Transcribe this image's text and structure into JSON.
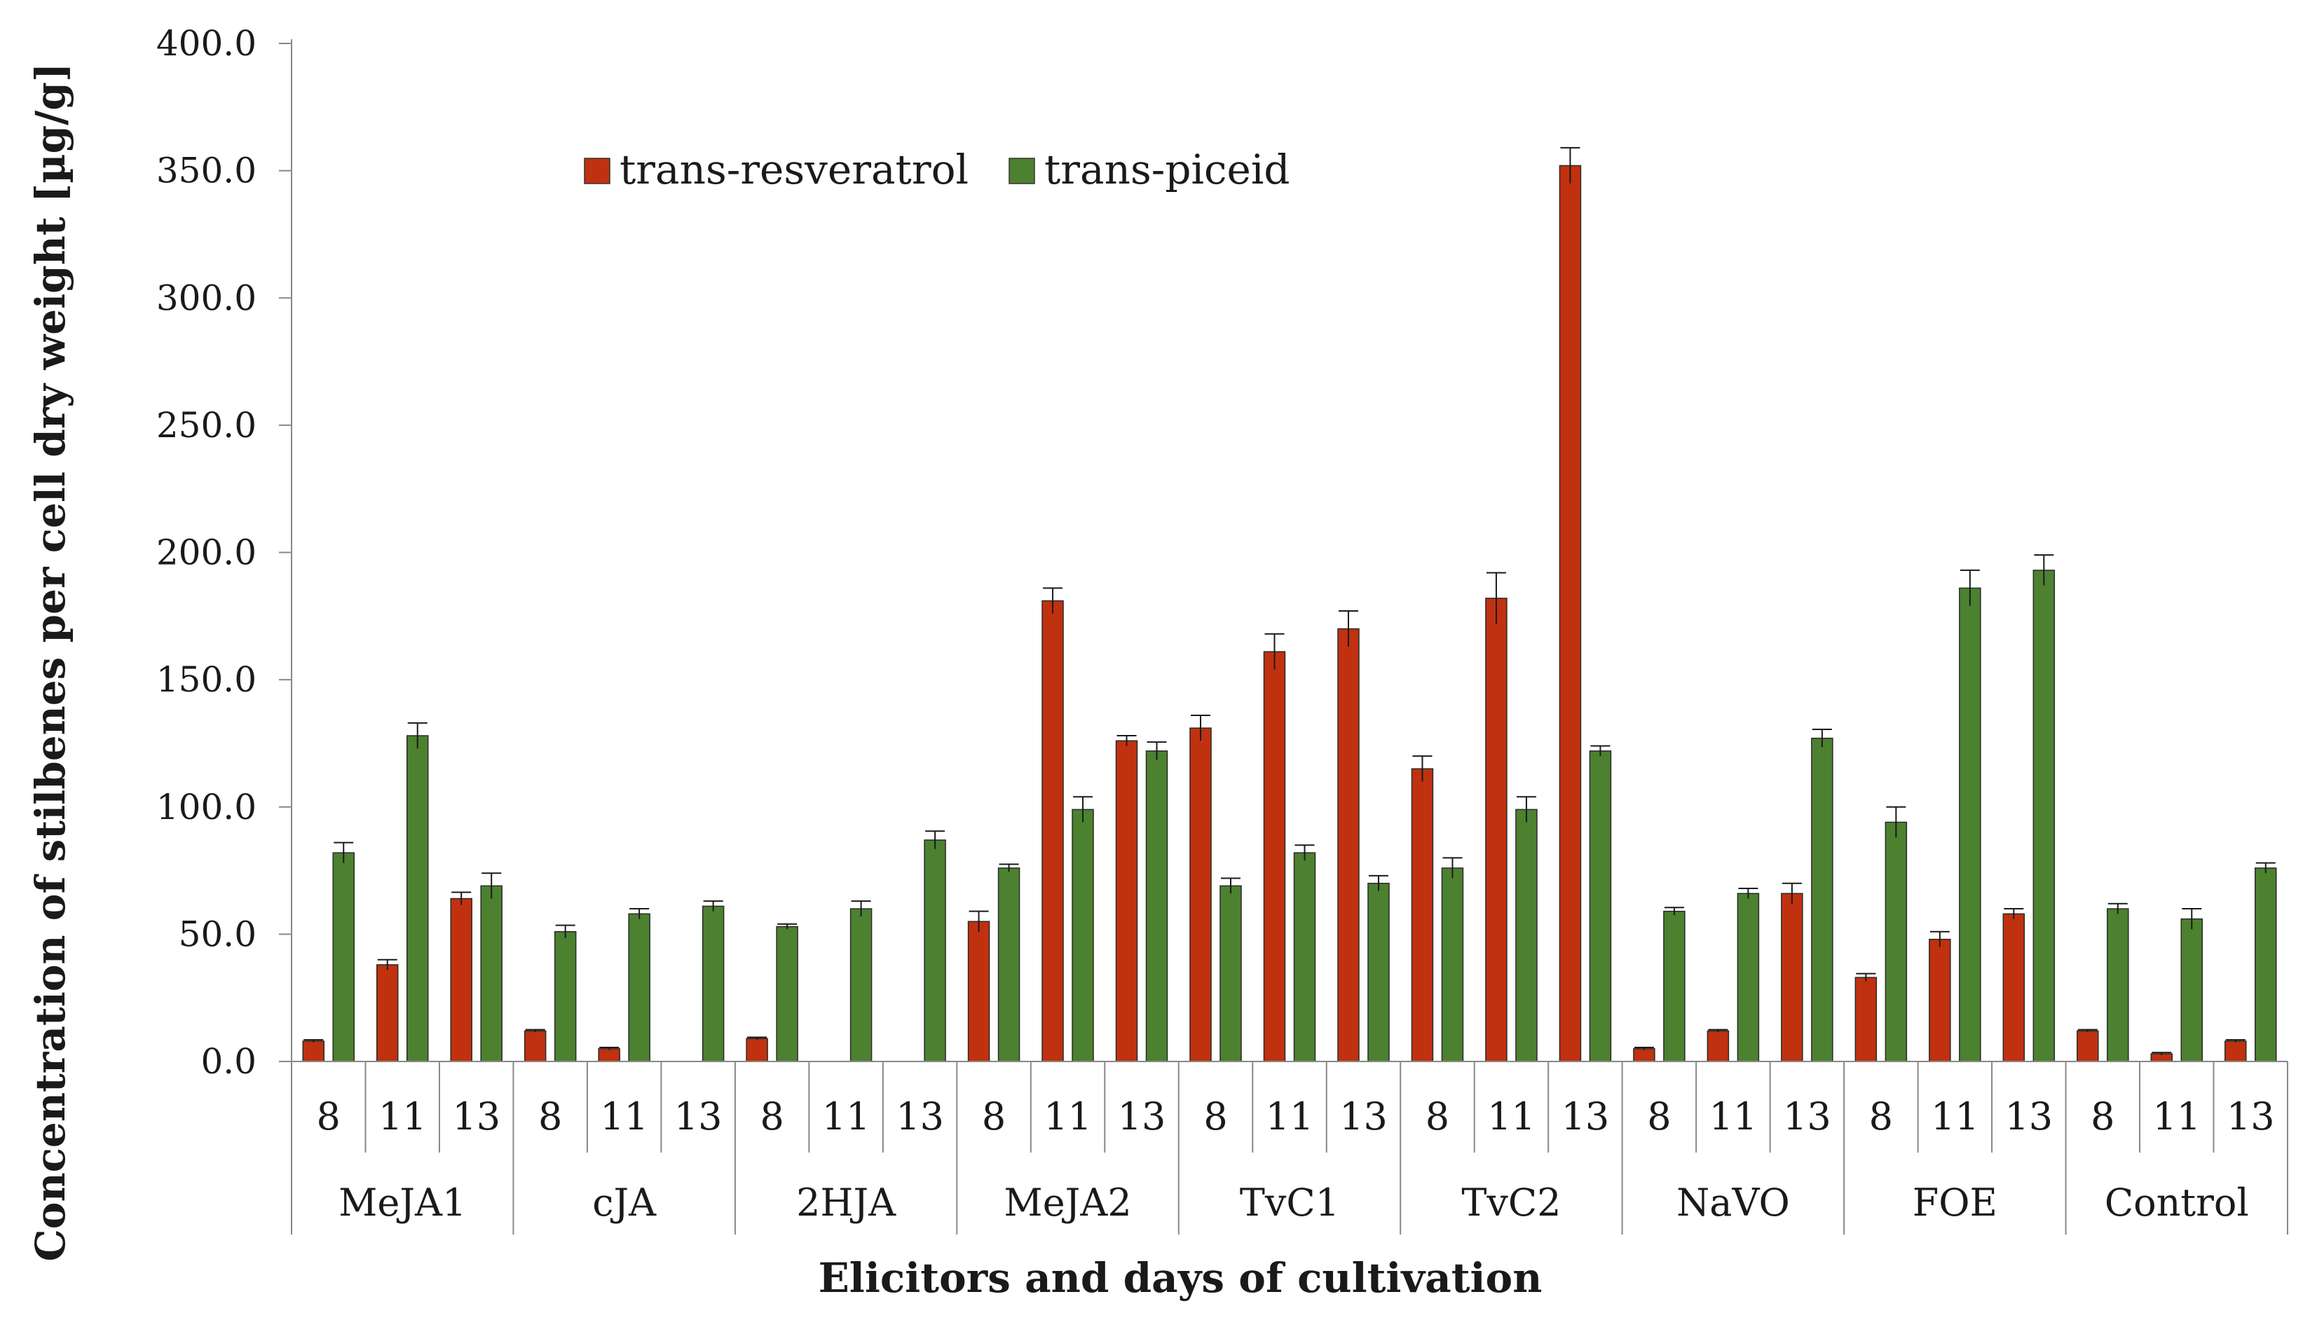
{
  "chart_data": {
    "type": "bar",
    "title": "",
    "xlabel": "Elicitors and days of cultivation",
    "ylabel": "Concentration of stilbenes per cell dry weight [µg/g]",
    "ylim": [
      0,
      400
    ],
    "yticks": [
      "0.0",
      "50.0",
      "100.0",
      "150.0",
      "200.0",
      "250.0",
      "300.0",
      "350.0",
      "400.0"
    ],
    "grid": false,
    "legend_position": "top-left",
    "groups": [
      {
        "name": "MeJA1",
        "days": [
          "8",
          "11",
          "13"
        ]
      },
      {
        "name": "cJA",
        "days": [
          "8",
          "11",
          "13"
        ]
      },
      {
        "name": "2HJA",
        "days": [
          "8",
          "11",
          "13"
        ]
      },
      {
        "name": "MeJA2",
        "days": [
          "8",
          "11",
          "13"
        ]
      },
      {
        "name": "TvC1",
        "days": [
          "8",
          "11",
          "13"
        ]
      },
      {
        "name": "TvC2",
        "days": [
          "8",
          "11",
          "13"
        ]
      },
      {
        "name": "NaVO",
        "days": [
          "8",
          "11",
          "13"
        ]
      },
      {
        "name": "FOE",
        "days": [
          "8",
          "11",
          "13"
        ]
      },
      {
        "name": "Control",
        "days": [
          "8",
          "11",
          "13"
        ]
      }
    ],
    "series": [
      {
        "name": "trans-resveratrol",
        "color": "#c0310f",
        "values": [
          8,
          38,
          64,
          12,
          5,
          0,
          9,
          0,
          0,
          55,
          181,
          126,
          131,
          161,
          170,
          115,
          182,
          352,
          5,
          12,
          66,
          33,
          48,
          58,
          12,
          3,
          8
        ],
        "errors": [
          0.5,
          2,
          2.5,
          0.5,
          0.5,
          0,
          0.5,
          0,
          0,
          4,
          5,
          2,
          5,
          7,
          7,
          5,
          10,
          7,
          0.5,
          0.5,
          4,
          1.5,
          3,
          2,
          0.5,
          0.5,
          0.5
        ]
      },
      {
        "name": "trans-piceid",
        "color": "#4c8130",
        "values": [
          82,
          128,
          69,
          51,
          58,
          61,
          53,
          60,
          87,
          76,
          99,
          122,
          69,
          82,
          70,
          76,
          99,
          122,
          59,
          66,
          127,
          94,
          186,
          193,
          60,
          56,
          76
        ],
        "errors": [
          4,
          5,
          5,
          2.5,
          2,
          2,
          1,
          3,
          3.5,
          1.5,
          5,
          3.5,
          3,
          3,
          3,
          4,
          5,
          2,
          1.5,
          2,
          3.5,
          6,
          7,
          6,
          2,
          4,
          2
        ]
      }
    ]
  }
}
